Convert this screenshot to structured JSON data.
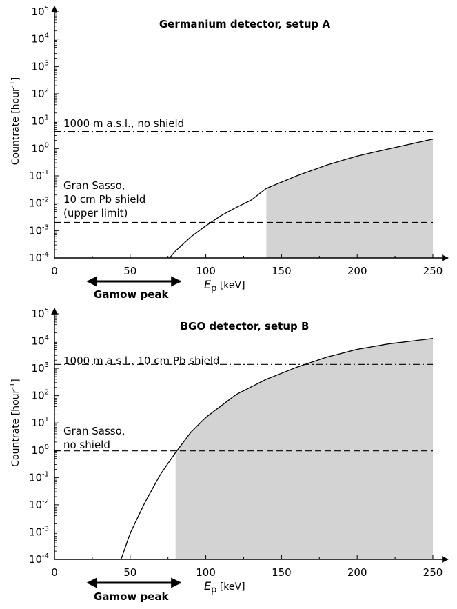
{
  "chart_data": [
    {
      "type": "line",
      "title": "Germanium detector, setup A",
      "xlabel": "E_p [keV]",
      "xlabel_main": "E",
      "xlabel_sub": "p",
      "xlabel_unit": "[keV]",
      "ylabel": "Countrate [hour^-1]",
      "ylabel_main": "Countrate  [hour",
      "ylabel_sup": "-1",
      "ylabel_close": "]",
      "y_scale": "log",
      "xlim": [
        0,
        250
      ],
      "ylim_exp": [
        -4,
        5
      ],
      "x_ticks": [
        "0",
        "50",
        "100",
        "150",
        "200",
        "250"
      ],
      "y_tick_exponents": [
        "-4",
        "-3",
        "-2",
        "-1",
        "0",
        "1",
        "2",
        "3",
        "4",
        "5"
      ],
      "y_tick_base": "10",
      "series": [
        {
          "type": "curve",
          "points": [
            [
              76,
              0.0001
            ],
            [
              80,
              0.00018
            ],
            [
              90,
              0.00058
            ],
            [
              100,
              0.0015
            ],
            [
              110,
              0.0035
            ],
            [
              120,
              0.007
            ],
            [
              130,
              0.013
            ],
            [
              140,
              0.035
            ],
            [
              160,
              0.1
            ],
            [
              180,
              0.25
            ],
            [
              200,
              0.53
            ],
            [
              220,
              0.95
            ],
            [
              250,
              2.2
            ]
          ]
        }
      ],
      "shaded_region": {
        "x_from": 140,
        "x_to": 250,
        "color": "#d3d3d3"
      },
      "reference_lines": [
        {
          "y": 4.2,
          "style": "dash-dot",
          "label": "1000 m a.s.l., no shield"
        },
        {
          "y": 0.002,
          "style": "dash",
          "label_lines": [
            "Gran Sasso,",
            "10 cm Pb shield",
            "(upper limit)"
          ]
        }
      ],
      "gamow_peak": {
        "label": "Gamow peak",
        "x_from": 20,
        "x_to": 85
      }
    },
    {
      "type": "line",
      "title": "BGO detector, setup B",
      "xlabel": "E_p [keV]",
      "xlabel_main": "E",
      "xlabel_sub": "p",
      "xlabel_unit": "[keV]",
      "ylabel": "Countrate [hour^-1]",
      "ylabel_main": "Countrate  [hour",
      "ylabel_sup": "-1",
      "ylabel_close": "]",
      "y_scale": "log",
      "xlim": [
        0,
        250
      ],
      "ylim_exp": [
        -4,
        5
      ],
      "x_ticks": [
        "0",
        "50",
        "100",
        "150",
        "200",
        "250"
      ],
      "y_tick_exponents": [
        "-4",
        "-3",
        "-2",
        "-1",
        "0",
        "1",
        "2",
        "3",
        "4",
        "5"
      ],
      "y_tick_base": "10",
      "series": [
        {
          "type": "curve",
          "points": [
            [
              44,
              0.0001
            ],
            [
              50,
              0.0009
            ],
            [
              60,
              0.013
            ],
            [
              70,
              0.13
            ],
            [
              80,
              0.82
            ],
            [
              90,
              4.5
            ],
            [
              100,
              16
            ],
            [
              120,
              110
            ],
            [
              140,
              400
            ],
            [
              160,
              1100
            ],
            [
              180,
              2600
            ],
            [
              200,
              5000
            ],
            [
              220,
              7800
            ],
            [
              250,
              12500
            ]
          ]
        }
      ],
      "shaded_region": {
        "x_from": 80,
        "x_to": 250,
        "color": "#d3d3d3"
      },
      "reference_lines": [
        {
          "y": 1400,
          "style": "dash-dot",
          "label": "1000 m a.s.l., 10 cm Pb shield"
        },
        {
          "y": 0.95,
          "style": "dash",
          "label_lines": [
            "Gran Sasso,",
            "no shield"
          ]
        }
      ],
      "gamow_peak": {
        "label": "Gamow peak",
        "x_from": 20,
        "x_to": 85
      }
    }
  ]
}
